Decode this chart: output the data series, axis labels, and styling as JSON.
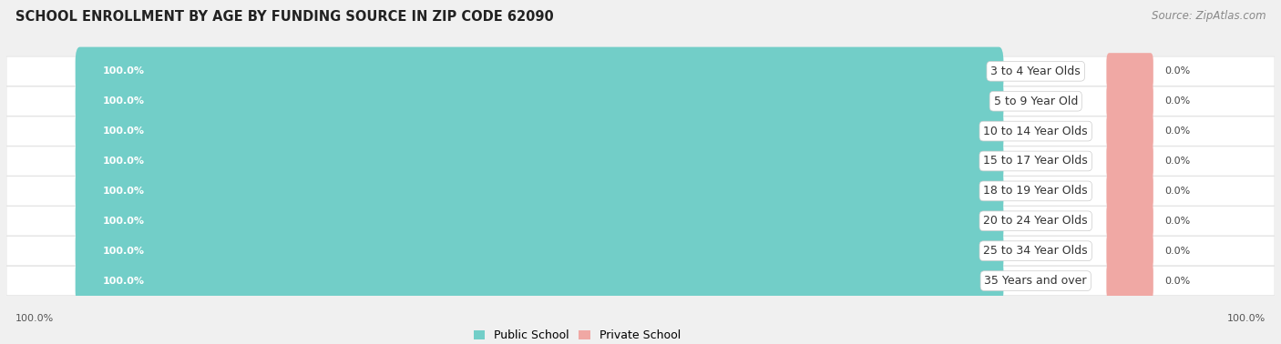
{
  "title": "SCHOOL ENROLLMENT BY AGE BY FUNDING SOURCE IN ZIP CODE 62090",
  "source": "Source: ZipAtlas.com",
  "categories": [
    "3 to 4 Year Olds",
    "5 to 9 Year Old",
    "10 to 14 Year Olds",
    "15 to 17 Year Olds",
    "18 to 19 Year Olds",
    "20 to 24 Year Olds",
    "25 to 34 Year Olds",
    "35 Years and over"
  ],
  "public_values": [
    100.0,
    100.0,
    100.0,
    100.0,
    100.0,
    100.0,
    100.0,
    100.0
  ],
  "private_values": [
    0.0,
    0.0,
    0.0,
    0.0,
    0.0,
    0.0,
    0.0,
    0.0
  ],
  "public_color": "#72CEC8",
  "private_color": "#F0A8A4",
  "bg_color": "#f0f0f0",
  "row_bg_color": "#ffffff",
  "row_gap_color": "#e0e0e0",
  "title_fontsize": 10.5,
  "source_fontsize": 8.5,
  "bar_label_fontsize": 8,
  "cat_label_fontsize": 9,
  "axis_label_fontsize": 8,
  "x_left_label": "100.0%",
  "x_right_label": "100.0%",
  "legend_public": "Public School",
  "legend_private": "Private School",
  "total_width": 100,
  "private_stub": 4.5
}
